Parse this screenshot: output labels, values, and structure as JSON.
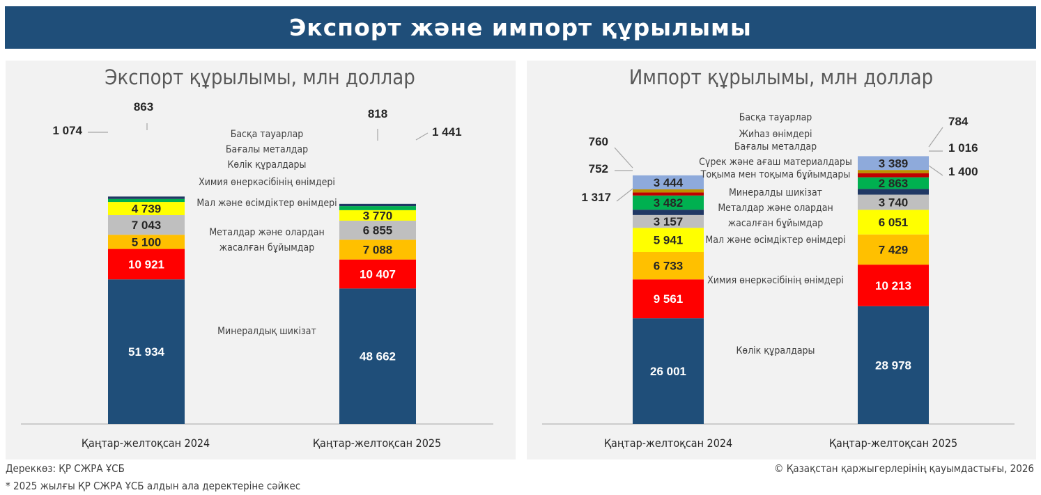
{
  "banner": {
    "title": "Экспорт және импорт құрылымы"
  },
  "chart_data": [
    {
      "id": "export",
      "type": "bar",
      "stacked": true,
      "title": "Экспорт құрылымы, млн доллар",
      "categories": [
        "Қаңтар-желтоқсан 2024",
        "Қаңтар-желтоқсан 2025"
      ],
      "series": [
        {
          "name": "Минералдық шикізат",
          "label_lines": [
            "Минералдық шикізат"
          ],
          "color": "#1f4e79",
          "values": [
            51934,
            48662
          ],
          "labels": [
            "51 934",
            "48 662"
          ],
          "text_color": "#ffffff"
        },
        {
          "name": "Металдар және олардан жасалған бұйымдар",
          "label_lines": [
            "Металдар және олардан",
            "жасалған бұйымдар"
          ],
          "color": "#ff0000",
          "values": [
            10921,
            10407
          ],
          "labels": [
            "10 921",
            "10 407"
          ],
          "text_color": "#ffffff"
        },
        {
          "name": "Мал және өсімдіктер өнімдері",
          "label_lines": [
            "Мал және өсімдіктер өнімдері"
          ],
          "color": "#ffc000",
          "values": [
            5100,
            7088
          ],
          "labels": [
            "5 100",
            "7 088"
          ],
          "text_color": "#262626"
        },
        {
          "name": "Химия өнеркәсібінің өнімдері",
          "label_lines": [
            "Химия өнеркәсібінің өнімдері"
          ],
          "color": "#bfbfbf",
          "values": [
            7043,
            6855
          ],
          "labels": [
            "7 043",
            "6 855"
          ],
          "text_color": "#262626"
        },
        {
          "name": "Көлік құралдары",
          "label_lines": [
            "Көлік құралдары"
          ],
          "color": "#ffff00",
          "values": [
            4739,
            3770
          ],
          "labels": [
            "4 739",
            "3 770"
          ],
          "text_color": "#262626"
        },
        {
          "name": "Бағалы металдар",
          "label_lines": [
            "Бағалы металдар"
          ],
          "color": "#00b050",
          "values": [
            1074,
            1441
          ],
          "labels": [
            "1 074",
            "1 441"
          ],
          "text_color": "#262626"
        },
        {
          "name": "Басқа тауарлар",
          "label_lines": [
            "Басқа тауарлар"
          ],
          "color": "#203864",
          "values": [
            863,
            818
          ],
          "labels": [
            "863",
            "818"
          ],
          "text_color": "#262626"
        }
      ]
    },
    {
      "id": "import",
      "type": "bar",
      "stacked": true,
      "title": "Импорт құрылымы, млн доллар",
      "categories": [
        "Қаңтар-желтоқсан 2024",
        "Қаңтар-желтоқсан 2025"
      ],
      "series": [
        {
          "name": "Көлік құралдары",
          "label_lines": [
            "Көлік құралдары"
          ],
          "color": "#1f4e79",
          "values": [
            26001,
            28978
          ],
          "labels": [
            "26 001",
            "28 978"
          ],
          "text_color": "#ffffff"
        },
        {
          "name": "Химия өнеркәсібінің өнімдері",
          "label_lines": [
            "Химия өнеркәсібінің өнімдері"
          ],
          "color": "#ff0000",
          "values": [
            9561,
            10213
          ],
          "labels": [
            "9 561",
            "10 213"
          ],
          "text_color": "#ffffff"
        },
        {
          "name": "Мал және өсімдіктер өнімдері",
          "label_lines": [
            "Мал және өсімдіктер өнімдері"
          ],
          "color": "#ffc000",
          "values": [
            6733,
            7429
          ],
          "labels": [
            "6 733",
            "7 429"
          ],
          "text_color": "#262626"
        },
        {
          "name": "Металдар және олардан жасалған бұйымдар",
          "label_lines": [
            "Металдар және олардан",
            "жасалған бұйымдар"
          ],
          "color": "#ffff00",
          "values": [
            5941,
            6051
          ],
          "labels": [
            "5 941",
            "6 051"
          ],
          "text_color": "#262626"
        },
        {
          "name": "Минералды шикізат",
          "label_lines": [
            "Минералды шикізат"
          ],
          "color": "#bfbfbf",
          "values": [
            3157,
            3740
          ],
          "labels": [
            "3 157",
            "3 740"
          ],
          "text_color": "#262626"
        },
        {
          "name": "Тоқыма мен тоқыма бұйымдары",
          "label_lines": [
            "Тоқыма мен тоқыма бұйымдары"
          ],
          "color": "#203864",
          "values": [
            1317,
            1400
          ],
          "labels": [
            "1 317",
            "1 400"
          ],
          "text_color": "#262626"
        },
        {
          "name": "Сүрек және ағаш материалдары",
          "label_lines": [
            "Сүрек және ағаш материалдары"
          ],
          "color": "#00b050",
          "values": [
            3482,
            2863
          ],
          "labels": [
            "3 482",
            "2 863"
          ],
          "text_color": "#262626"
        },
        {
          "name": "Бағалы металдар",
          "label_lines": [
            "Бағалы металдар"
          ],
          "color": "#c00000",
          "values": [
            752,
            1016
          ],
          "labels": [
            "752",
            "1 016"
          ],
          "text_color": "#262626"
        },
        {
          "name": "Жиһаз өнімдері",
          "label_lines": [
            "Жиһаз өнімдері"
          ],
          "color": "#bf9000",
          "values": [
            760,
            784
          ],
          "labels": [
            "760",
            "784"
          ],
          "text_color": "#262626"
        },
        {
          "name": "Басқа тауарлар",
          "label_lines": [
            "Басқа тауарлар"
          ],
          "color": "#8eaadb",
          "values": [
            3444,
            3389
          ],
          "labels": [
            "3 444",
            "3 389"
          ],
          "text_color": "#262626"
        }
      ]
    }
  ],
  "footer": {
    "source": "Дереккөз: ҚР СЖРА ҰСБ",
    "note": "* 2025 жылғы ҚР СЖРА ҰСБ алдын ала деректеріне сәйкес",
    "copyright": "© Қазақстан қаржыгерлерінің қауымдастығы, 2026"
  }
}
